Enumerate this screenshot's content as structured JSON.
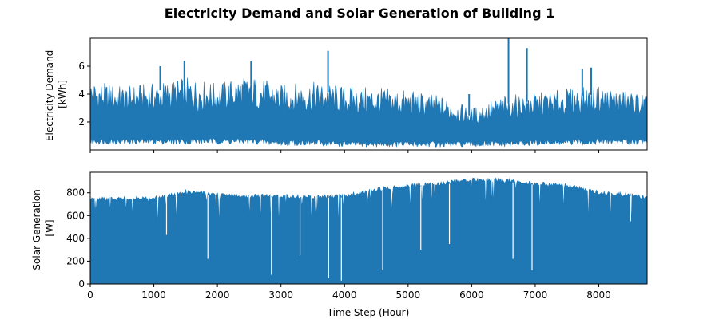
{
  "figure": {
    "title": "Electricity Demand and Solar Generation of Building 1"
  },
  "chart_data": [
    {
      "type": "area",
      "title": "",
      "xlabel": "",
      "ylabel_lines": [
        "Electricity Demand",
        "[kWh]"
      ],
      "series_color": "#1f77b4",
      "xlim": [
        0,
        8760
      ],
      "ylim": [
        0,
        8
      ],
      "x_ticks_shown": false,
      "yticks": [
        2,
        4,
        6
      ],
      "grid": false,
      "band": [
        {
          "x": 0,
          "min": 0.4,
          "max": 5.0
        },
        {
          "x": 500,
          "min": 0.4,
          "max": 4.6
        },
        {
          "x": 1000,
          "min": 0.4,
          "max": 4.8
        },
        {
          "x": 1500,
          "min": 0.4,
          "max": 5.2
        },
        {
          "x": 2000,
          "min": 0.4,
          "max": 4.8
        },
        {
          "x": 2500,
          "min": 0.4,
          "max": 5.4
        },
        {
          "x": 3000,
          "min": 0.3,
          "max": 4.7
        },
        {
          "x": 3500,
          "min": 0.3,
          "max": 4.9
        },
        {
          "x": 4000,
          "min": 0.2,
          "max": 4.6
        },
        {
          "x": 4500,
          "min": 0.2,
          "max": 4.5
        },
        {
          "x": 5000,
          "min": 0.2,
          "max": 4.3
        },
        {
          "x": 5500,
          "min": 0.2,
          "max": 3.9
        },
        {
          "x": 6000,
          "min": 0.2,
          "max": 3.0
        },
        {
          "x": 6500,
          "min": 0.2,
          "max": 3.9
        },
        {
          "x": 7000,
          "min": 0.3,
          "max": 4.1
        },
        {
          "x": 7500,
          "min": 0.3,
          "max": 4.4
        },
        {
          "x": 8000,
          "min": 0.4,
          "max": 4.6
        },
        {
          "x": 8500,
          "min": 0.4,
          "max": 4.2
        },
        {
          "x": 8760,
          "min": 0.4,
          "max": 4.0
        }
      ],
      "peaks": [
        {
          "x": 1100,
          "y": 6.0
        },
        {
          "x": 1480,
          "y": 6.4
        },
        {
          "x": 2530,
          "y": 6.4
        },
        {
          "x": 3740,
          "y": 7.1
        },
        {
          "x": 5960,
          "y": 4.0
        },
        {
          "x": 6580,
          "y": 8.0
        },
        {
          "x": 6870,
          "y": 7.3
        },
        {
          "x": 7740,
          "y": 5.8
        },
        {
          "x": 7880,
          "y": 5.9
        }
      ]
    },
    {
      "type": "area",
      "title": "",
      "xlabel": "Time Step (Hour)",
      "ylabel_lines": [
        "Solar Generation",
        "[W]"
      ],
      "series_color": "#1f77b4",
      "xlim": [
        0,
        8760
      ],
      "ylim": [
        0,
        980
      ],
      "xticks": [
        0,
        1000,
        2000,
        3000,
        4000,
        5000,
        6000,
        7000,
        8000
      ],
      "yticks": [
        0,
        200,
        400,
        600,
        800
      ],
      "grid": false,
      "envelope": [
        {
          "x": 0,
          "y": 760
        },
        {
          "x": 500,
          "y": 770
        },
        {
          "x": 1000,
          "y": 770
        },
        {
          "x": 1500,
          "y": 830
        },
        {
          "x": 2000,
          "y": 800
        },
        {
          "x": 2500,
          "y": 790
        },
        {
          "x": 3000,
          "y": 790
        },
        {
          "x": 3500,
          "y": 780
        },
        {
          "x": 4000,
          "y": 790
        },
        {
          "x": 4500,
          "y": 850
        },
        {
          "x": 5000,
          "y": 880
        },
        {
          "x": 5500,
          "y": 900
        },
        {
          "x": 6000,
          "y": 930
        },
        {
          "x": 6500,
          "y": 930
        },
        {
          "x": 7000,
          "y": 900
        },
        {
          "x": 7500,
          "y": 880
        },
        {
          "x": 8000,
          "y": 820
        },
        {
          "x": 8500,
          "y": 800
        },
        {
          "x": 8760,
          "y": 770
        }
      ],
      "dips": [
        {
          "x": 1200,
          "y": 430
        },
        {
          "x": 1850,
          "y": 220
        },
        {
          "x": 2850,
          "y": 80
        },
        {
          "x": 3300,
          "y": 250
        },
        {
          "x": 3750,
          "y": 50
        },
        {
          "x": 3950,
          "y": 30
        },
        {
          "x": 4600,
          "y": 120
        },
        {
          "x": 5200,
          "y": 300
        },
        {
          "x": 5650,
          "y": 350
        },
        {
          "x": 6650,
          "y": 220
        },
        {
          "x": 6950,
          "y": 120
        },
        {
          "x": 8500,
          "y": 550
        }
      ]
    }
  ]
}
